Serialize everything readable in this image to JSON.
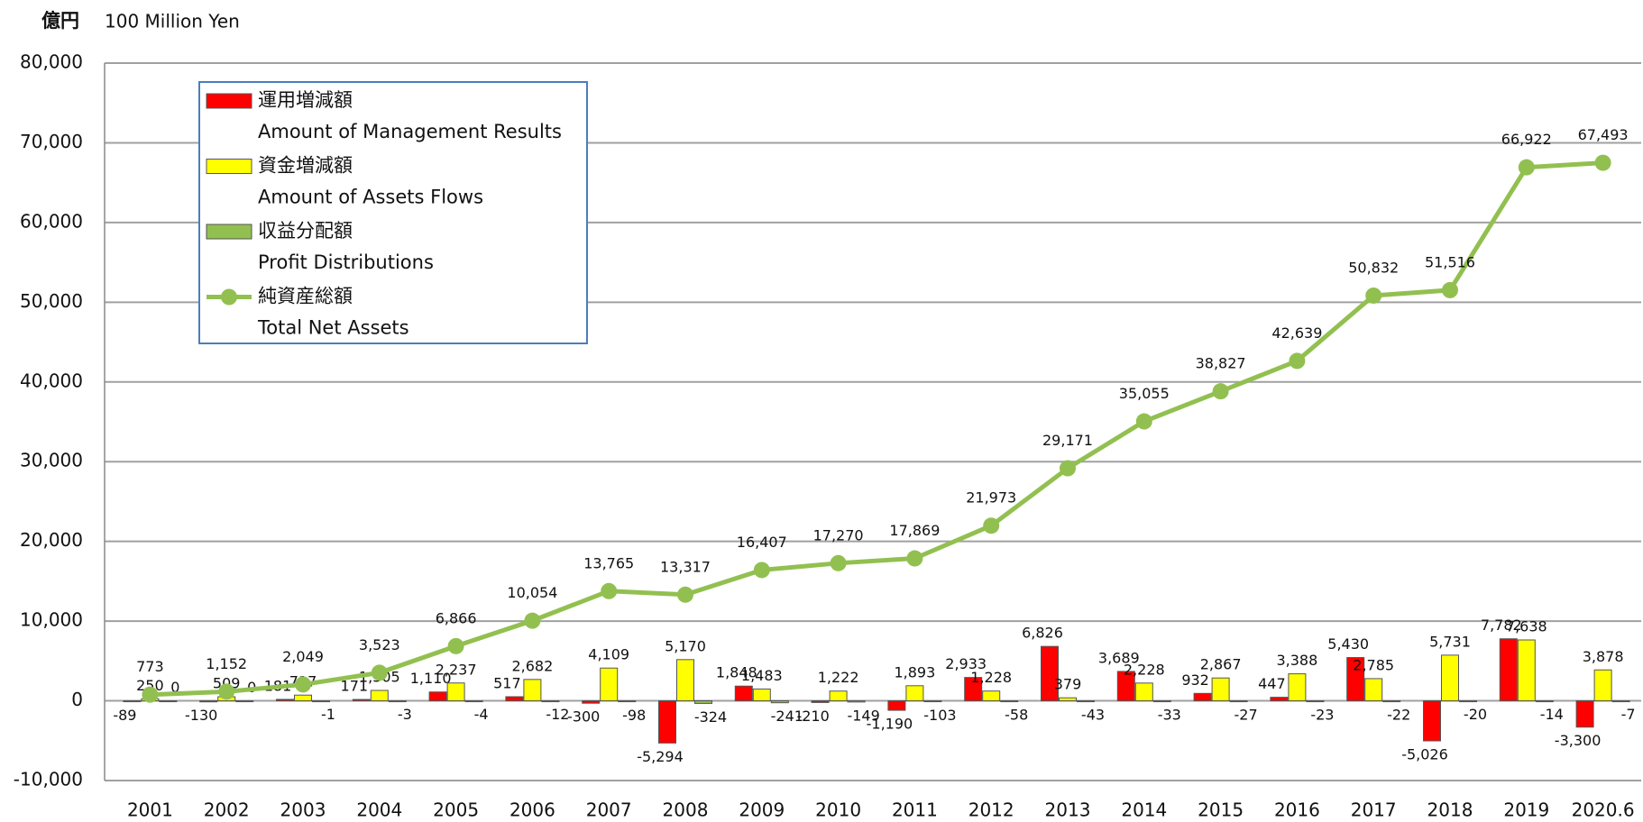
{
  "chart_data": {
    "type": "bar_line",
    "ylabel": [
      "億円",
      "100 Million Yen"
    ],
    "categories": [
      "2001",
      "2002",
      "2003",
      "2004",
      "2005",
      "2006",
      "2007",
      "2008",
      "2009",
      "2010",
      "2011",
      "2012",
      "2013",
      "2014",
      "2015",
      "2016",
      "2017",
      "2018",
      "2019",
      "2020.6"
    ],
    "ylim": [
      -10000,
      80000
    ],
    "yticks": [
      {
        "value": -10000,
        "label": "-10,000"
      },
      0,
      {
        "value": 10000,
        "label": "10,000"
      },
      {
        "value": 20000,
        "label": "20,000"
      },
      {
        "value": 30000,
        "label": "30,000"
      },
      {
        "value": 40000,
        "label": "40,000"
      },
      {
        "value": 50000,
        "label": "50,000"
      },
      {
        "value": 60000,
        "label": "60,000"
      },
      {
        "value": 70000,
        "label": "70,000"
      },
      {
        "value": 80000,
        "label": "80,000"
      }
    ],
    "grid": true,
    "legend": "upper-left",
    "series": [
      {
        "name": [
          "運用増減額",
          "Amount of Management Results"
        ],
        "type": "bar",
        "color": "#ff0000",
        "values": [
          -89,
          -130,
          181,
          171,
          1110,
          517,
          -300,
          -5294,
          1848,
          -210,
          -1190,
          2933,
          6826,
          3689,
          932,
          447,
          5430,
          -5026,
          7782,
          -3300
        ],
        "value_labels": [
          "-89",
          "-130",
          "181",
          "171",
          "1,110",
          "517",
          "-300",
          "-5,294",
          "1,848",
          "-210",
          "-1,190",
          "2,933",
          "6,826",
          "3,689",
          "932",
          "447",
          "5,430",
          "-5,026",
          "7,782",
          "-3,300"
        ]
      },
      {
        "name": [
          "資金増減額",
          "Amount of Assets Flows"
        ],
        "type": "bar",
        "color": "#ffff00",
        "values": [
          250,
          509,
          717,
          1305,
          2237,
          2682,
          4109,
          5170,
          1483,
          1222,
          1893,
          1228,
          379,
          2228,
          2867,
          3388,
          2785,
          5731,
          7638,
          3878
        ],
        "value_labels": [
          "250",
          "509",
          "717",
          "1,305",
          "2,237",
          "2,682",
          "4,109",
          "5,170",
          "1,483",
          "1,222",
          "1,893",
          "1,228",
          "379",
          "2,228",
          "2,867",
          "3,388",
          "2,785",
          "5,731",
          "7,638",
          "3,878"
        ]
      },
      {
        "name": [
          "収益分配額",
          "Profit Distributions"
        ],
        "type": "bar",
        "color": "#92c050",
        "values": [
          0,
          0,
          -1,
          -3,
          -4,
          -12,
          -98,
          -324,
          -241,
          -149,
          -103,
          -58,
          -43,
          -33,
          -27,
          -23,
          -22,
          -20,
          -14,
          -7
        ]
      },
      {
        "name": [
          "純資産総額",
          "Total Net Assets"
        ],
        "type": "line",
        "color": "#92c050",
        "values": [
          773,
          1152,
          2049,
          3523,
          6866,
          10054,
          13765,
          13317,
          16407,
          17270,
          17869,
          21973,
          29171,
          35055,
          38827,
          42639,
          50832,
          51516,
          66922,
          67493
        ],
        "value_labels": [
          "773",
          "1,152",
          "2,049",
          "3,523",
          "6,866",
          "10,054",
          "13,765",
          "13,317",
          "16,407",
          "17,270",
          "17,869",
          "21,973",
          "29,171",
          "35,055",
          "38,827",
          "42,639",
          "50,832",
          "51,516",
          "66,922",
          "67,493"
        ]
      }
    ]
  }
}
